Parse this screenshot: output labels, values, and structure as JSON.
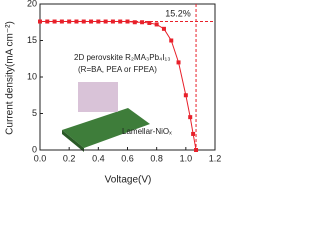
{
  "chart_data": {
    "type": "line",
    "xlabel": "Voltage(V)",
    "ylabel": "Current density(mA cm⁻²)",
    "annotations": [
      "15.2%",
      "2D perovskite R₂MA₃Pb₄I₁₃",
      "(R=BA, PEA or FPEA)",
      "Lamellar-NiOₓ"
    ],
    "x": [
      0,
      0.05,
      0.1,
      0.15,
      0.2,
      0.25,
      0.3,
      0.35,
      0.4,
      0.45,
      0.5,
      0.55,
      0.6,
      0.65,
      0.7,
      0.75,
      0.8,
      0.85,
      0.9,
      0.95,
      1.0,
      1.03,
      1.05,
      1.07
    ],
    "series": [
      {
        "color": "#e8202a",
        "values": [
          17.6,
          17.6,
          17.6,
          17.6,
          17.6,
          17.6,
          17.6,
          17.6,
          17.6,
          17.6,
          17.6,
          17.6,
          17.6,
          17.5,
          17.5,
          17.4,
          17.2,
          16.6,
          15.0,
          12.0,
          7.5,
          4.5,
          2.2,
          0
        ]
      }
    ],
    "hline": 17.6,
    "vline": 1.07,
    "xlim": [
      0,
      1.2
    ],
    "ylim": [
      0,
      20
    ],
    "xticks": [
      {
        "value": 0,
        "label": "0.0"
      },
      0.2,
      0.4,
      0.6,
      0.8,
      {
        "value": 1,
        "label": "1.0"
      },
      1.2
    ],
    "yticks": [
      0,
      5,
      10,
      15,
      20
    ]
  }
}
